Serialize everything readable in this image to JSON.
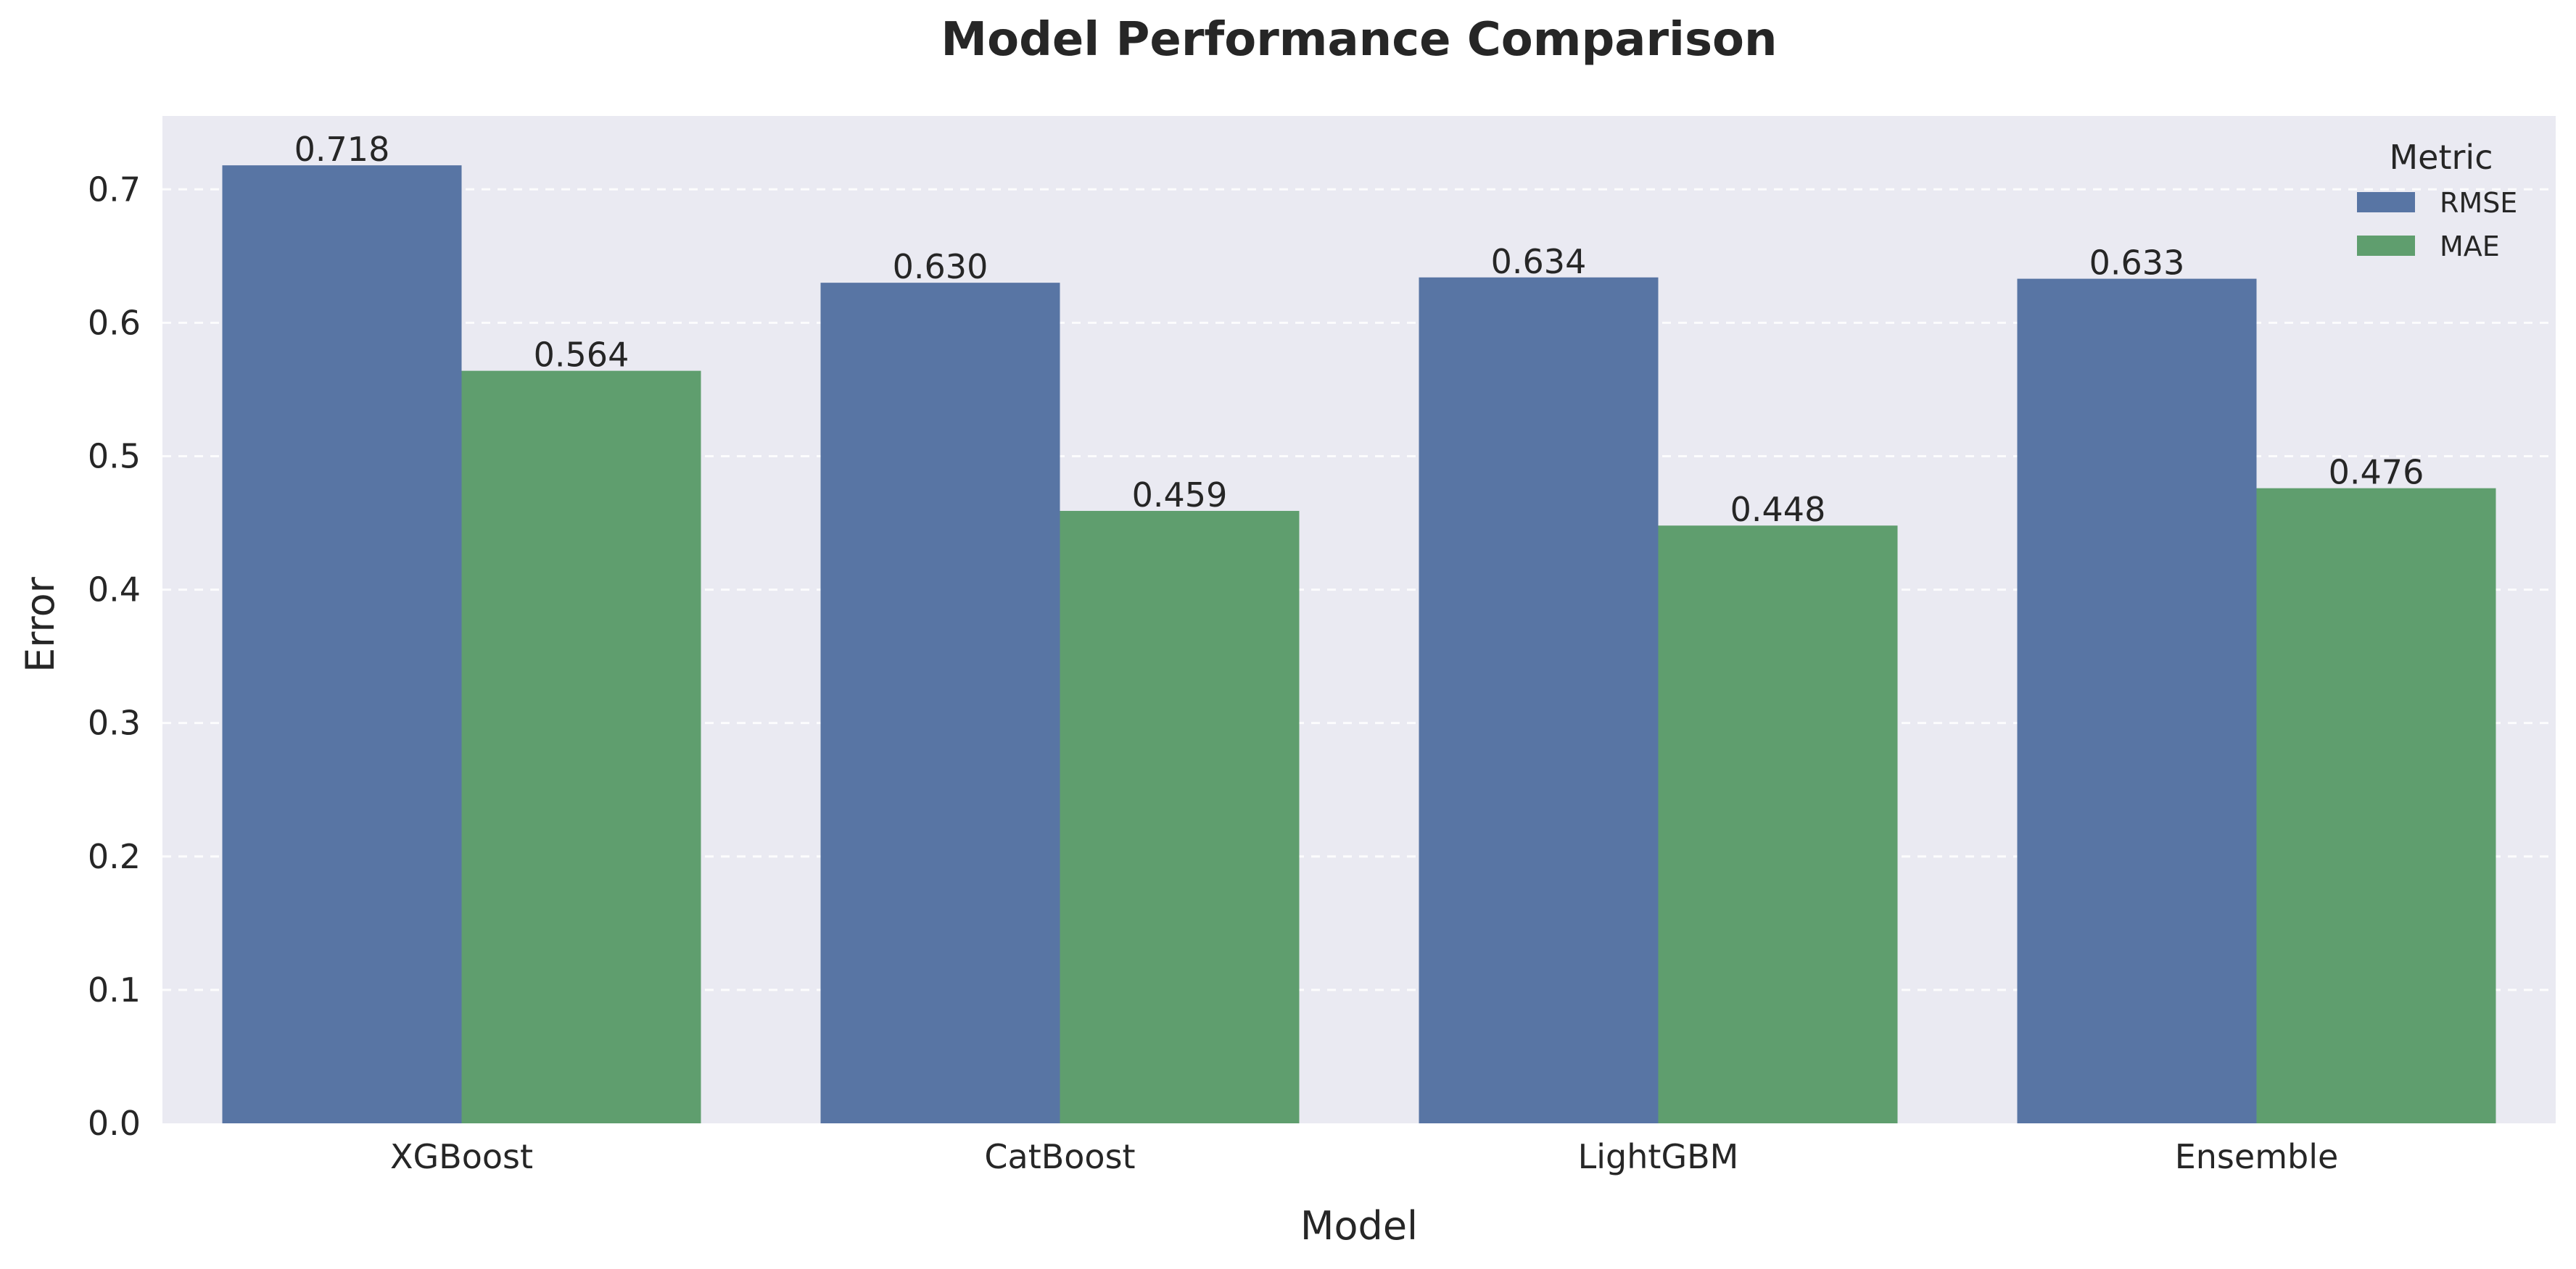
{
  "chart_data": {
    "type": "bar",
    "title": "Model Performance Comparison",
    "xlabel": "Model",
    "ylabel": "Error",
    "categories": [
      "XGBoost",
      "CatBoost",
      "LightGBM",
      "Ensemble"
    ],
    "series": [
      {
        "name": "RMSE",
        "color": "#5875a4",
        "values": [
          0.718,
          0.63,
          0.634,
          0.633
        ],
        "labels": [
          "0.718",
          "0.630",
          "0.634",
          "0.633"
        ]
      },
      {
        "name": "MAE",
        "color": "#5f9e6e",
        "values": [
          0.564,
          0.459,
          0.448,
          0.476
        ],
        "labels": [
          "0.564",
          "0.459",
          "0.448",
          "0.476"
        ]
      }
    ],
    "ylim": [
      0,
      0.755
    ],
    "yticks": [
      0.0,
      0.1,
      0.2,
      0.3,
      0.4,
      0.5,
      0.6,
      0.7
    ],
    "ytick_labels": [
      "0.0",
      "0.1",
      "0.2",
      "0.3",
      "0.4",
      "0.5",
      "0.6",
      "0.7"
    ],
    "grid": true,
    "plot_background": "#eaeaf2",
    "legend": {
      "title": "Metric",
      "placement": "top-right"
    }
  }
}
